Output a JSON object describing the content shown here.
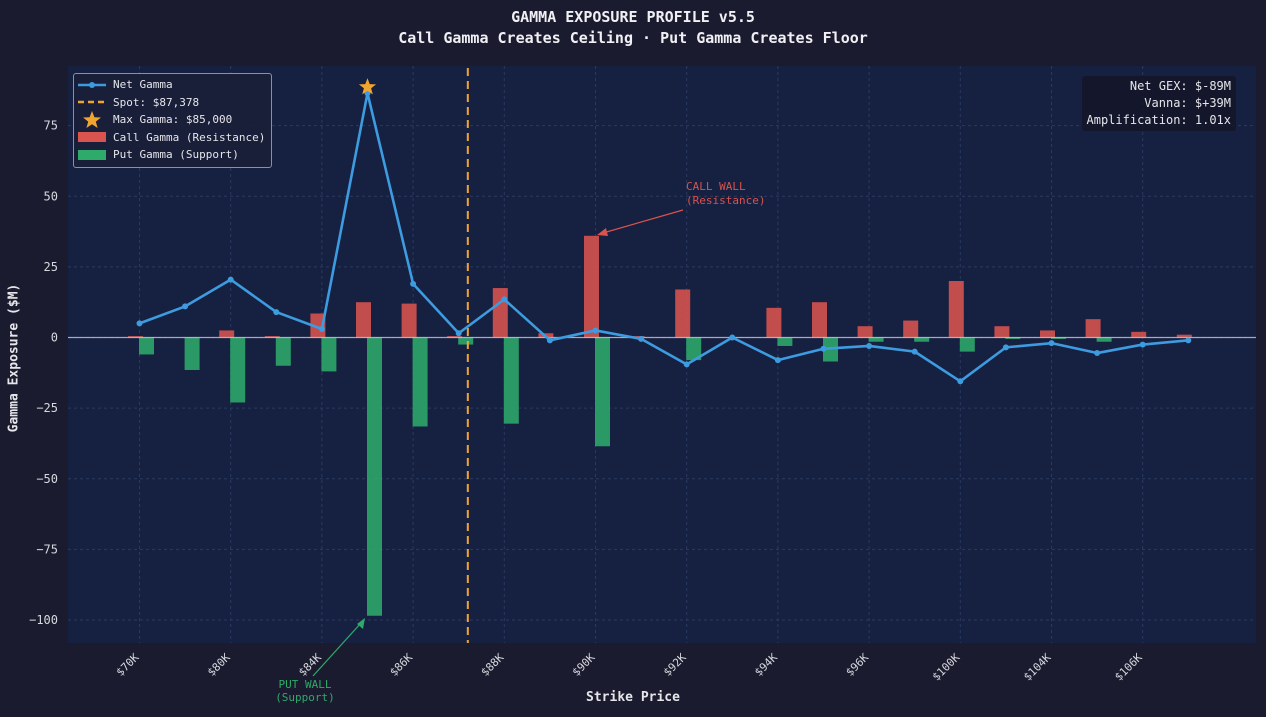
{
  "title": "GAMMA EXPOSURE PROFILE v5.5",
  "subtitle": "Call Gamma Creates Ceiling · Put Gamma Creates Floor",
  "legend": {
    "net": "Net Gamma",
    "spot": "Spot: $87,378",
    "max": "Max Gamma: $85,000",
    "call": "Call Gamma (Resistance)",
    "put": "Put Gamma (Support)"
  },
  "stats": {
    "net_gex": "Net GEX: $-89M",
    "vanna": "Vanna: $+39M",
    "amplification": "Amplification: 1.01x"
  },
  "annotations": {
    "call_wall": [
      "CALL WALL",
      "(Resistance)"
    ],
    "put_wall": [
      "PUT WALL",
      "(Support)"
    ]
  },
  "colors": {
    "background": "#1a1b2e",
    "plot_bg": "#162040",
    "call": "#d9534f",
    "put": "#2eaa6a",
    "net": "#3d9be0",
    "spot": "#f0a530",
    "star": "#f0a530"
  },
  "chart_data": {
    "type": "bar",
    "title": "GAMMA EXPOSURE PROFILE v5.5",
    "subtitle": "Call Gamma Creates Ceiling · Put Gamma Creates Floor",
    "xlabel": "Strike Price",
    "ylabel": "Gamma Exposure ($M)",
    "ylim": [
      -108,
      96
    ],
    "yticks": [
      75,
      50,
      25,
      0,
      -25,
      -50,
      -75,
      -100
    ],
    "x_tick_labels": [
      "$70K",
      "$80K",
      "$84K",
      "$86K",
      "$88K",
      "$90K",
      "$92K",
      "$94K",
      "$96K",
      "$100K",
      "$104K",
      "$106K"
    ],
    "x_tick_index": [
      0,
      2,
      4,
      6,
      8,
      10,
      12,
      14,
      16,
      18,
      20,
      22
    ],
    "spot_index": 7,
    "grid": true,
    "legend_position": "top-left",
    "series": [
      {
        "name": "Call Gamma (Resistance)",
        "values": [
          0.5,
          0,
          2.5,
          0.5,
          8.5,
          12.5,
          12,
          0.5,
          17.5,
          1.5,
          36,
          0.5,
          17,
          0,
          10.5,
          12.5,
          4,
          6,
          20,
          4,
          2.5,
          6.5,
          2,
          1
        ]
      },
      {
        "name": "Put Gamma (Support)",
        "values": [
          -6,
          -11.5,
          -23,
          -10,
          -12,
          -98.5,
          -31.5,
          -2.5,
          -30.5,
          0,
          -38.5,
          0,
          -8,
          0,
          -3,
          -8.5,
          -1.5,
          -1.5,
          -5,
          -0.5,
          -0.5,
          -1.5,
          0,
          0
        ]
      },
      {
        "name": "Net Gamma",
        "values": [
          5,
          11,
          20.5,
          9,
          3,
          86.5,
          19,
          1.5,
          13.5,
          -1,
          2.5,
          -0.5,
          -9.5,
          0,
          -8,
          -4,
          -3,
          -5,
          -15.5,
          -3.5,
          -2,
          -5.5,
          -2.5,
          -1
        ]
      }
    ],
    "max_gamma_index": 5
  }
}
